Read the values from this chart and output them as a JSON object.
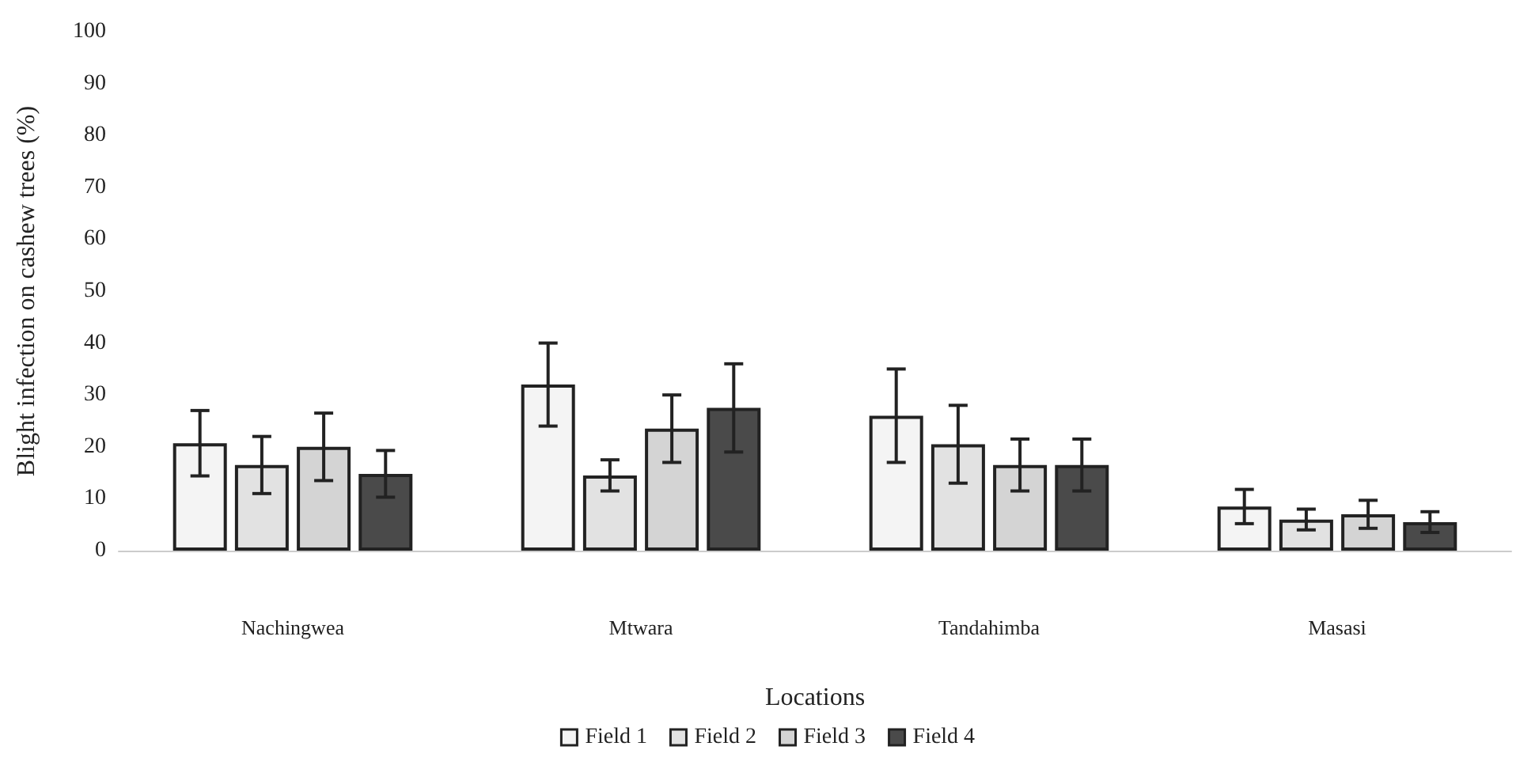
{
  "chart_data": {
    "type": "bar",
    "xlabel": "Locations",
    "ylabel": "Blight infection on cashew trees (%)",
    "categories": [
      "Nachingwea",
      "Mtwara",
      "Tandahimba",
      "Masasi"
    ],
    "series": [
      {
        "name": "Field 1",
        "color": "#f4f4f4",
        "values": [
          20.7,
          32,
          26,
          8.5
        ],
        "errors": [
          6.3,
          8,
          9,
          3.3
        ]
      },
      {
        "name": "Field 2",
        "color": "#e2e2e2",
        "values": [
          16.5,
          14.5,
          20.5,
          6
        ],
        "errors": [
          5.5,
          3,
          7.5,
          2
        ]
      },
      {
        "name": "Field 3",
        "color": "#d4d4d4",
        "values": [
          20,
          23.5,
          16.5,
          7
        ],
        "errors": [
          6.5,
          6.5,
          5,
          2.7
        ]
      },
      {
        "name": "Field 4",
        "color": "#4a4a4a",
        "values": [
          14.8,
          27.5,
          16.5,
          5.5
        ],
        "errors": [
          4.5,
          8.5,
          5,
          2
        ]
      }
    ],
    "ylim": [
      0,
      100
    ],
    "yticks": [
      0,
      10,
      20,
      30,
      40,
      50,
      60,
      70,
      80,
      90,
      100
    ],
    "grid": false,
    "legend": "bottom"
  }
}
